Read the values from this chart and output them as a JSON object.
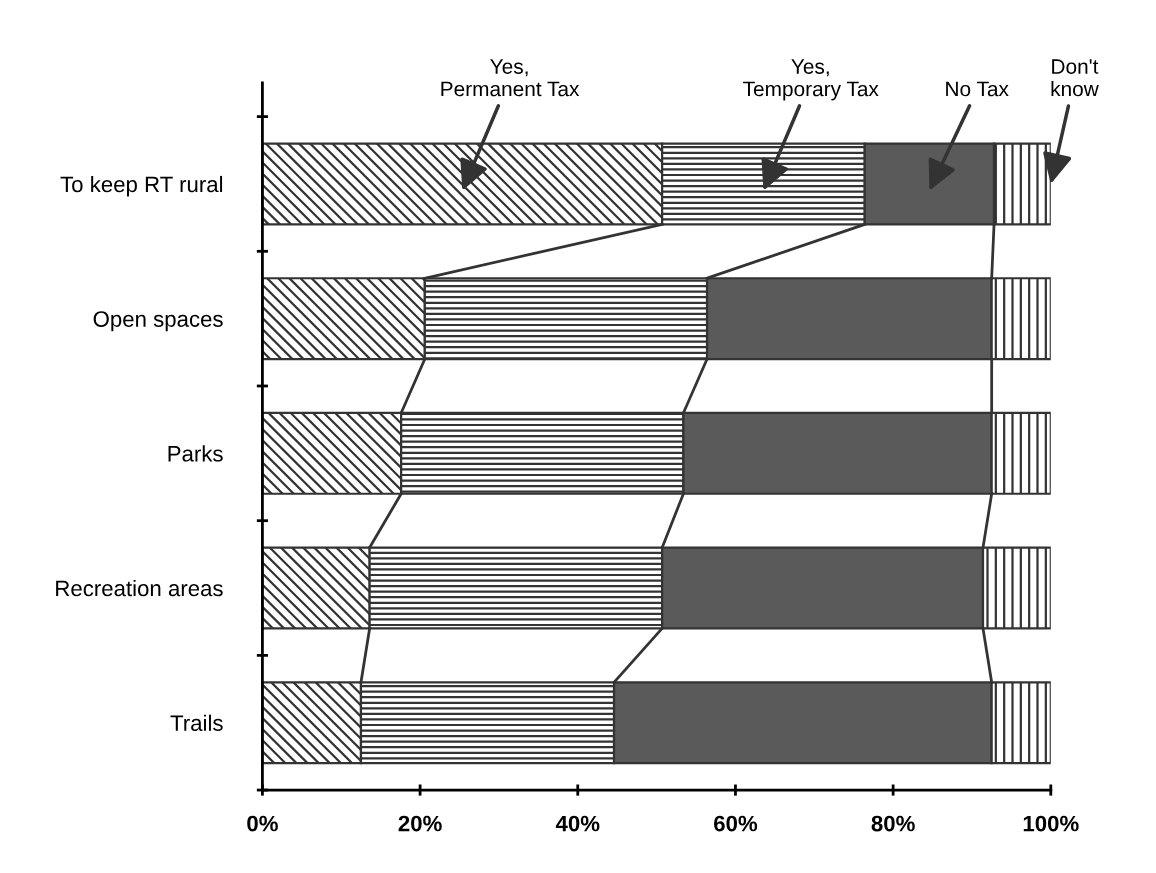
{
  "chart_data": {
    "type": "bar",
    "orientation": "horizontal",
    "stacked": true,
    "legend": false,
    "grid": false,
    "categories": [
      "To keep RT rural",
      "Open spaces",
      "Parks",
      "Recreation areas",
      "Trails"
    ],
    "series": [
      {
        "name": "Yes,\nPermanent Tax",
        "color": "#333333",
        "values": [
          50.7,
          20.6,
          17.6,
          13.6,
          12.5
        ]
      },
      {
        "name": "Yes,\nTemporary Tax",
        "color": "#333333",
        "values": [
          25.7,
          35.8,
          35.8,
          37.1,
          32.1
        ]
      },
      {
        "name": "No Tax",
        "color": "#5a5a5a",
        "values": [
          16.4,
          36.1,
          39.1,
          40.7,
          47.9
        ]
      },
      {
        "name": "Don't\nknow",
        "color": "#333333",
        "values": [
          7.2,
          7.5,
          7.5,
          8.6,
          7.5
        ]
      }
    ],
    "xlim": [
      0,
      100
    ],
    "xticks": [
      {
        "value": 0,
        "label": "0%"
      },
      {
        "value": 20,
        "label": "20%"
      },
      {
        "value": 40,
        "label": "40%"
      },
      {
        "value": 60,
        "label": "60%"
      },
      {
        "value": 80,
        "label": "80%"
      },
      {
        "value": 100,
        "label": "100%"
      }
    ]
  }
}
